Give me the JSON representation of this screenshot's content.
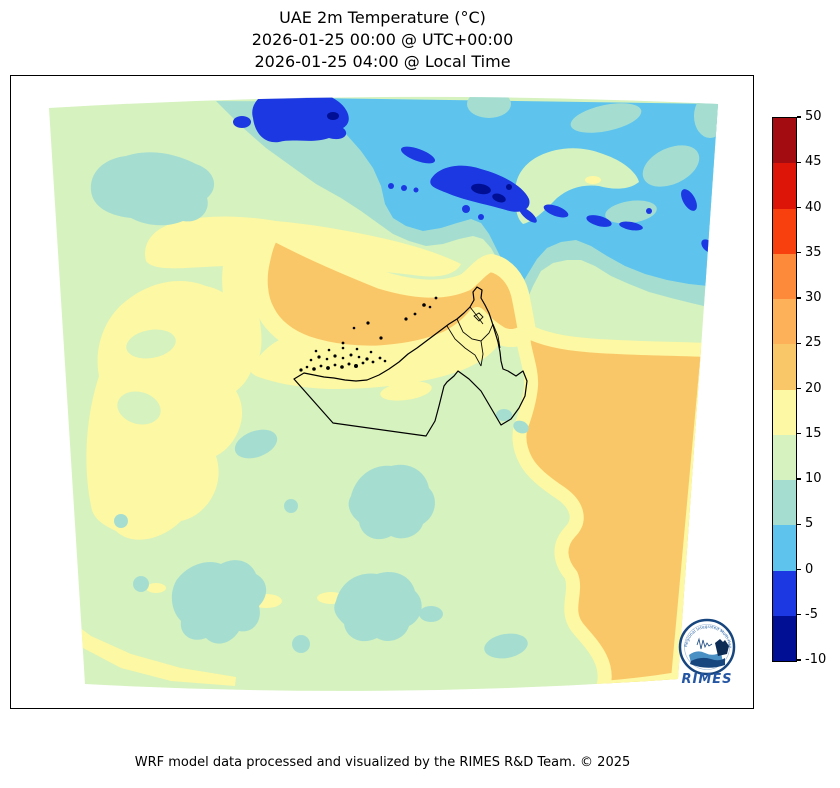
{
  "figure": {
    "title_line1": "UAE 2m Temperature (°C)",
    "title_line2": "2026-01-25 00:00 @ UTC+00:00",
    "title_line3": "2026-01-25 04:00 @ Local Time",
    "caption": "WRF model data processed and visualized by the RIMES R&D Team. © 2025"
  },
  "colorbar": {
    "tick_labels": [
      "50",
      "45",
      "40",
      "35",
      "30",
      "25",
      "20",
      "15",
      "10",
      "5",
      "0",
      "-5",
      "-10"
    ],
    "colors_top_to_bottom": [
      "#a30d12",
      "#dd1508",
      "#f8400e",
      "#fc8a3a",
      "#fdb259",
      "#fac768",
      "#fdf8a3",
      "#d6f2be",
      "#a5ded1",
      "#5ec4ee",
      "#1c38e2",
      "#000f93"
    ]
  },
  "logo": {
    "name": "RIMES",
    "motto": "Regional Integrated Multi-Hazard Early Warning System"
  },
  "chart_data": {
    "type": "heatmap",
    "subtype": "filled-contour weather map",
    "title": "UAE 2m Temperature (°C)",
    "valid_time_utc": "2026-01-25 00:00 @ UTC+00:00",
    "valid_time_local": "2026-01-25 04:00 @ Local Time",
    "variable": "2 m air temperature",
    "units": "°C",
    "levels": [
      -10,
      -5,
      0,
      5,
      10,
      15,
      20,
      25,
      30,
      35,
      40,
      45,
      50
    ],
    "colors_low_to_high": [
      "#000f93",
      "#1c38e2",
      "#5ec4ee",
      "#a5ded1",
      "#d6f2be",
      "#fdf8a3",
      "#fac768",
      "#fdb259",
      "#fc8a3a",
      "#f8400e",
      "#dd1508",
      "#a30d12"
    ],
    "colorbar_range": [
      -10,
      50
    ],
    "colorbar_step": 5,
    "legend_position": "right vertical colorbar",
    "grid": false,
    "map_overlay": "UAE national and emirate boundaries with coastal islands",
    "region_readings": [
      {
        "area": "Zagros mountains, upper map (Iran)",
        "temp_c": "-5 to 0, pockets -10 to -5"
      },
      {
        "area": "Iranian highlands / NE quadrant",
        "temp_c": "0 to 10"
      },
      {
        "area": "Persian Gulf water band NW of UAE coast",
        "temp_c": "20 to 25"
      },
      {
        "area": "Gulf of Oman / Arabian Sea (SE of map)",
        "temp_c": "20 to 25"
      },
      {
        "area": "UAE coastal strip and NW desert band",
        "temp_c": "15 to 20"
      },
      {
        "area": "UAE / Saudi interior desert",
        "temp_c": "10 to 15"
      },
      {
        "area": "scattered cool interior patches",
        "temp_c": "5 to 10"
      }
    ]
  }
}
